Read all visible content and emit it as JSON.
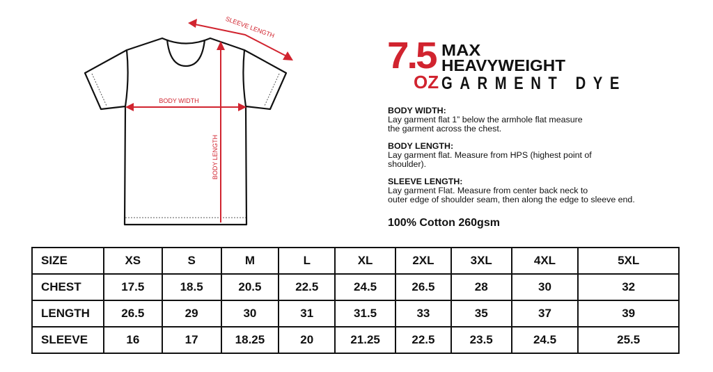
{
  "diagram": {
    "labels": {
      "sleeve_length": "SLEEVE LENGTH",
      "body_width": "BODY WIDTH",
      "body_length": "BODY LENGTH"
    },
    "accent_color": "#d1242f"
  },
  "logo": {
    "weight": "7.5",
    "unit": "OZ",
    "line1": "MAX",
    "line2": "HEAVYWEIGHT",
    "line3": "GARMENT DYE"
  },
  "instructions": [
    {
      "heading": "BODY WIDTH:",
      "line1": "Lay garment flat 1” below the armhole flat measure",
      "line2": "the garment across the chest."
    },
    {
      "heading": "BODY LENGTH:",
      "line1": "Lay garment flat. Measure from HPS (highest point of",
      "line2": "shoulder)."
    },
    {
      "heading": "SLEEVE LENGTH:",
      "line1": "Lay garment Flat. Measure from center back neck to",
      "line2": "outer edge of shoulder seam, then along the edge to sleeve end."
    }
  ],
  "fabric": "100% Cotton  260gsm",
  "size_table": {
    "rows": [
      [
        "SIZE",
        "XS",
        "S",
        "M",
        "L",
        "XL",
        "2XL",
        "3XL",
        "4XL",
        "5XL"
      ],
      [
        "CHEST",
        "17.5",
        "18.5",
        "20.5",
        "22.5",
        "24.5",
        "26.5",
        "28",
        "30",
        "32"
      ],
      [
        "LENGTH",
        "26.5",
        "29",
        "30",
        "31",
        "31.5",
        "33",
        "35",
        "37",
        "39"
      ],
      [
        "SLEEVE",
        "16",
        "17",
        "18.25",
        "20",
        "21.25",
        "22.5",
        "23.5",
        "24.5",
        "25.5"
      ]
    ]
  }
}
